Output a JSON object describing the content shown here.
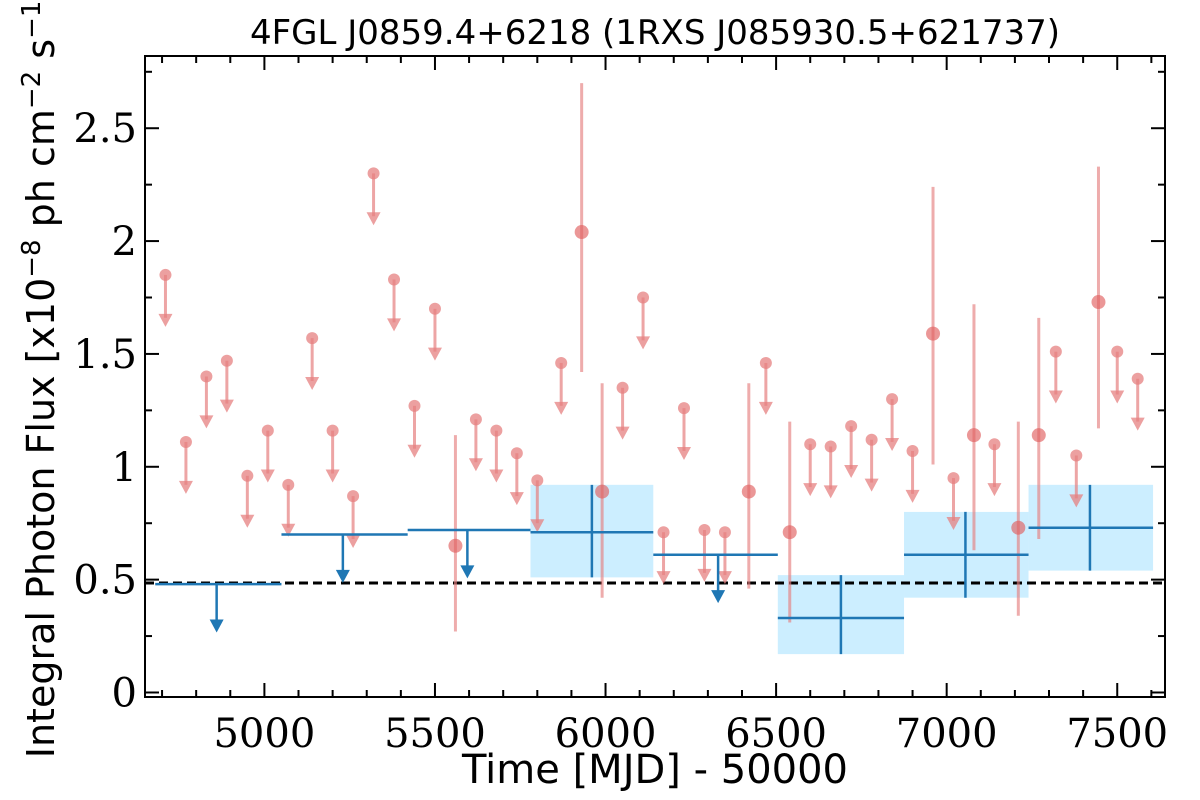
{
  "chart_data": {
    "type": "scatter",
    "title": "4FGL J0859.4+6218 (1RXS J085930.5+621737)",
    "xlabel": "Time [MJD] - 50000",
    "ylabel": "Integral Photon Flux [x10",
    "ylabel_exp1": "−8",
    "ylabel_mid": " ph cm",
    "ylabel_exp2": "−2",
    "ylabel_mid2": " s",
    "ylabel_exp3": "−1",
    "ylabel_end": "]",
    "xlim": [
      4650,
      7640
    ],
    "ylim": [
      -0.02,
      2.82
    ],
    "xticks": [
      5000,
      5500,
      6000,
      6500,
      7000,
      7500
    ],
    "xtick_labels": [
      "5000",
      "5500",
      "6000",
      "6500",
      "7000",
      "7500"
    ],
    "yticks": [
      0,
      0.5,
      1,
      1.5,
      2,
      2.5
    ],
    "ytick_labels": [
      "0",
      "0.5",
      "1",
      "1.5",
      "2",
      "2.5"
    ],
    "grid": false,
    "reference_line": {
      "y": 0.485,
      "style": "dashed",
      "color": "#000000"
    },
    "short_series": {
      "color": "#e68080",
      "upper_limits": [
        [
          4710,
          1.85
        ],
        [
          4770,
          1.11
        ],
        [
          4830,
          1.4
        ],
        [
          4890,
          1.47
        ],
        [
          4950,
          0.96
        ],
        [
          5010,
          1.16
        ],
        [
          5070,
          0.92
        ],
        [
          5140,
          1.57
        ],
        [
          5200,
          1.16
        ],
        [
          5260,
          0.87
        ],
        [
          5320,
          2.3
        ],
        [
          5380,
          1.83
        ],
        [
          5440,
          1.27
        ],
        [
          5500,
          1.7
        ],
        [
          5620,
          1.21
        ],
        [
          5680,
          1.16
        ],
        [
          5740,
          1.06
        ],
        [
          5800,
          0.94
        ],
        [
          5870,
          1.46
        ],
        [
          6050,
          1.35
        ],
        [
          6110,
          1.75
        ],
        [
          6170,
          0.71
        ],
        [
          6230,
          1.26
        ],
        [
          6290,
          0.72
        ],
        [
          6350,
          0.71
        ],
        [
          6470,
          1.46
        ],
        [
          6600,
          1.1
        ],
        [
          6660,
          1.09
        ],
        [
          6720,
          1.18
        ],
        [
          6780,
          1.12
        ],
        [
          6840,
          1.3
        ],
        [
          6900,
          1.07
        ],
        [
          7020,
          0.95
        ],
        [
          7140,
          1.1
        ],
        [
          7320,
          1.51
        ],
        [
          7380,
          1.05
        ],
        [
          7500,
          1.51
        ],
        [
          7560,
          1.39
        ]
      ],
      "detections": [
        {
          "x": 5560,
          "y": 0.65,
          "ylo": 0.27,
          "yhi": 1.14
        },
        {
          "x": 5930,
          "y": 2.04,
          "ylo": 1.42,
          "yhi": 2.7
        },
        {
          "x": 5990,
          "y": 0.89,
          "ylo": 0.42,
          "yhi": 1.37
        },
        {
          "x": 6420,
          "y": 0.89,
          "ylo": 0.46,
          "yhi": 1.37
        },
        {
          "x": 6540,
          "y": 0.71,
          "ylo": 0.31,
          "yhi": 1.2
        },
        {
          "x": 6960,
          "y": 1.59,
          "ylo": 1.01,
          "yhi": 2.24
        },
        {
          "x": 7080,
          "y": 1.14,
          "ylo": 0.63,
          "yhi": 1.72
        },
        {
          "x": 7210,
          "y": 0.73,
          "ylo": 0.34,
          "yhi": 1.2
        },
        {
          "x": 7270,
          "y": 1.14,
          "ylo": 0.68,
          "yhi": 1.66
        },
        {
          "x": 7445,
          "y": 1.73,
          "ylo": 1.17,
          "yhi": 2.33
        }
      ]
    },
    "long_series": {
      "color": "#1f77b4",
      "band_color": "#cceeff",
      "upper_limits": [
        {
          "x": 4860,
          "xlo": 4680,
          "xhi": 5050,
          "y": 0.48
        },
        {
          "x": 5230,
          "xlo": 5050,
          "xhi": 5420,
          "y": 0.7
        },
        {
          "x": 5595,
          "xlo": 5420,
          "xhi": 5780,
          "y": 0.72
        },
        {
          "x": 6330,
          "xlo": 6140,
          "xhi": 6505,
          "y": 0.61
        }
      ],
      "detections": [
        {
          "x": 5960,
          "xlo": 5780,
          "xhi": 6140,
          "y": 0.71,
          "ylo": 0.51,
          "yhi": 0.92
        },
        {
          "x": 6690,
          "xlo": 6505,
          "xhi": 6875,
          "y": 0.33,
          "ylo": 0.17,
          "yhi": 0.52
        },
        {
          "x": 7055,
          "xlo": 6875,
          "xhi": 7240,
          "y": 0.61,
          "ylo": 0.42,
          "yhi": 0.8
        },
        {
          "x": 7420,
          "xlo": 7240,
          "xhi": 7605,
          "y": 0.73,
          "ylo": 0.54,
          "yhi": 0.92
        }
      ]
    }
  }
}
